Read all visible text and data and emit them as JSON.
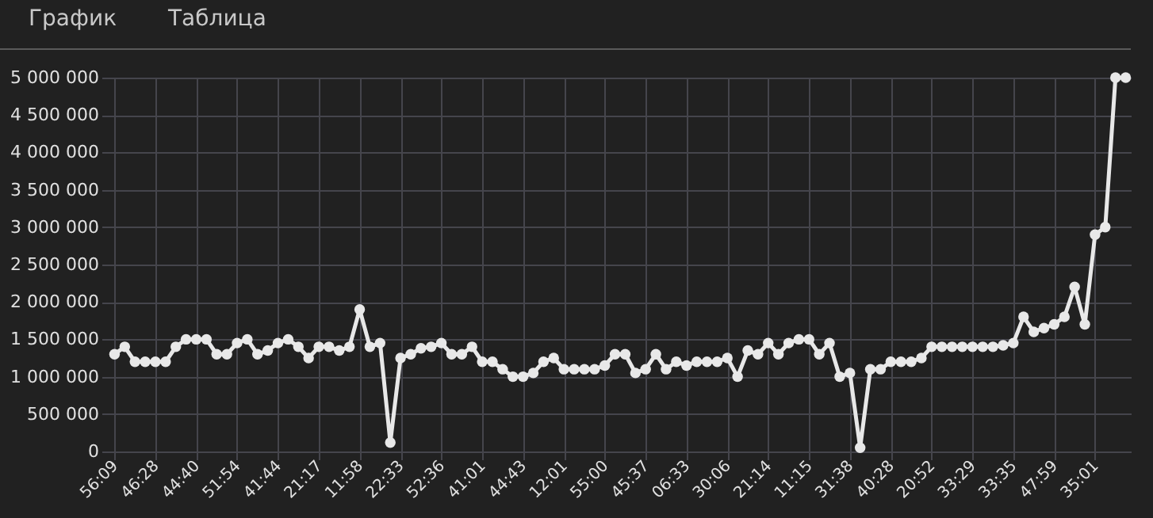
{
  "chart_data": {
    "type": "line",
    "annotations": [
      "График",
      "Таблица"
    ],
    "categories": [
      "56:09",
      null,
      null,
      null,
      "46:28",
      null,
      null,
      null,
      "44:40",
      null,
      null,
      null,
      "51:54",
      null,
      null,
      null,
      "41:44",
      null,
      null,
      null,
      "21:17",
      null,
      null,
      null,
      "11:58",
      null,
      null,
      null,
      "22:33",
      null,
      null,
      null,
      "52:36",
      null,
      null,
      null,
      "41:01",
      null,
      null,
      null,
      "44:43",
      null,
      null,
      null,
      "12:01",
      null,
      null,
      null,
      "55:00",
      null,
      null,
      null,
      "45:37",
      null,
      null,
      null,
      "06:33",
      null,
      null,
      null,
      "30:06",
      null,
      null,
      null,
      "21:14",
      null,
      null,
      null,
      "11:15",
      null,
      null,
      null,
      "31:38",
      null,
      null,
      null,
      "40:28",
      null,
      null,
      null,
      "20:52",
      null,
      null,
      null,
      "33:29",
      null,
      null,
      null,
      "33:35",
      null,
      null,
      null,
      "47:59",
      null,
      null,
      null,
      "35:01",
      null,
      null,
      null
    ],
    "series": [
      {
        "color": "#e8e8e8",
        "values": [
          1300000,
          1400000,
          1200000,
          1200000,
          1200000,
          1200000,
          1400000,
          1500000,
          1500000,
          1500000,
          1300000,
          1300000,
          1450000,
          1500000,
          1300000,
          1350000,
          1450000,
          1500000,
          1400000,
          1250000,
          1400000,
          1400000,
          1350000,
          1400000,
          1900000,
          1400000,
          1450000,
          120000,
          1250000,
          1300000,
          1380000,
          1400000,
          1450000,
          1300000,
          1300000,
          1400000,
          1200000,
          1200000,
          1100000,
          1000000,
          1000000,
          1050000,
          1200000,
          1250000,
          1100000,
          1100000,
          1100000,
          1100000,
          1150000,
          1300000,
          1300000,
          1050000,
          1100000,
          1300000,
          1100000,
          1200000,
          1150000,
          1200000,
          1200000,
          1200000,
          1250000,
          1000000,
          1350000,
          1300000,
          1450000,
          1300000,
          1450000,
          1500000,
          1500000,
          1300000,
          1450000,
          1000000,
          1050000,
          50000,
          1100000,
          1100000,
          1200000,
          1200000,
          1200000,
          1250000,
          1400000,
          1400000,
          1400000,
          1400000,
          1400000,
          1400000,
          1400000,
          1420000,
          1450000,
          1800000,
          1600000,
          1650000,
          1700000,
          1800000,
          2200000,
          1700000,
          2900000,
          3000000,
          5000000,
          5000000
        ]
      }
    ],
    "ylim": [
      0,
      5000000
    ],
    "yticks": [
      0,
      500000,
      1000000,
      1500000,
      2000000,
      2500000,
      3000000,
      3500000,
      4000000,
      4500000,
      5000000
    ],
    "grid": true,
    "marker": "circle",
    "line_style": "solid"
  }
}
